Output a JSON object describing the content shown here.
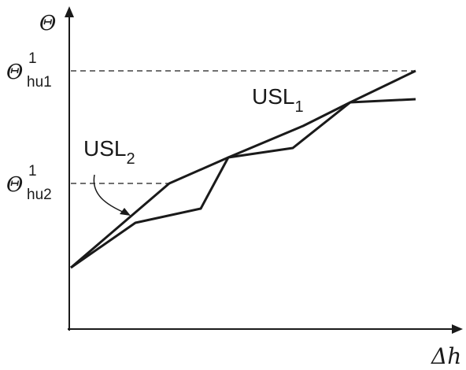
{
  "axes": {
    "y_label": "Θ",
    "x_label": "Δh"
  },
  "levels": [
    {
      "symbol": "Θ",
      "superscript": "1",
      "subscript": "hu1"
    },
    {
      "symbol": "Θ",
      "superscript": "1",
      "subscript": "hu2"
    }
  ],
  "curves": [
    {
      "name": "USL",
      "subscript": "1"
    },
    {
      "name": "USL",
      "subscript": "2"
    }
  ]
}
